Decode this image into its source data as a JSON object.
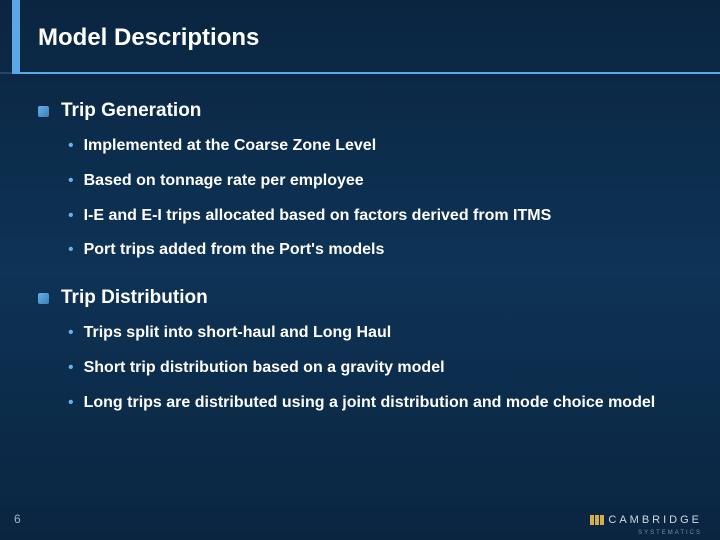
{
  "title": "Model Descriptions",
  "pageNumber": "6",
  "logo": {
    "text": "CAMBRIDGE",
    "sub": "SYSTEMATICS"
  },
  "accentColor": "#5aa9e6",
  "bulletColor": "#6ab0e8",
  "sections": [
    {
      "title": "Trip Generation",
      "items": [
        "Implemented at the Coarse Zone Level",
        "Based on tonnage rate per employee",
        "I-E and E-I trips allocated based on factors derived from ITMS",
        "Port trips added from the Port's models"
      ]
    },
    {
      "title": "Trip Distribution",
      "items": [
        "Trips split into short-haul and Long Haul",
        "Short trip distribution based on a gravity model",
        "Long trips are distributed using a joint distribution and mode choice model"
      ]
    }
  ]
}
